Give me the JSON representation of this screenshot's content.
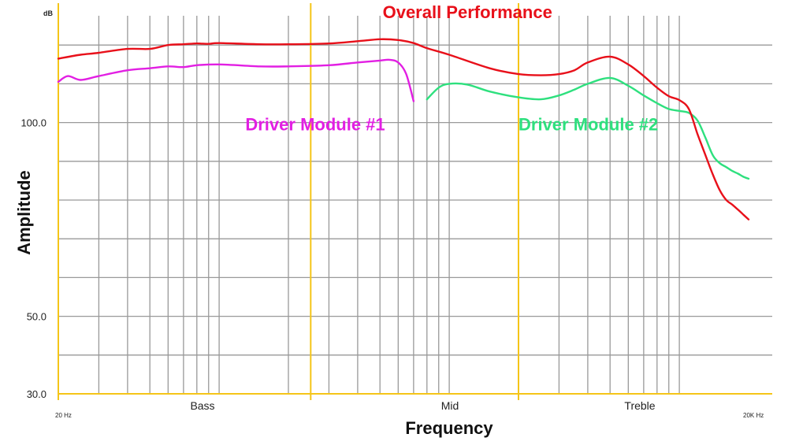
{
  "chart_data": {
    "type": "line",
    "title": "",
    "xlabel": "Frequency",
    "ylabel": "Amplitude",
    "y_unit": "dB",
    "x_unit_labels": {
      "start": "20 Hz",
      "end": "20K Hz"
    },
    "x_scale": "log",
    "xlim": [
      20,
      20000
    ],
    "ylim": [
      30,
      130
    ],
    "y_ticks": [
      {
        "value": 100,
        "label": "100.0"
      },
      {
        "value": 50,
        "label": "50.0"
      },
      {
        "value": 30,
        "label": "30.0"
      }
    ],
    "bands": [
      {
        "label": "Bass",
        "from": 20,
        "to": 250
      },
      {
        "label": "Mid",
        "from": 250,
        "to": 2000
      },
      {
        "label": "Treble",
        "from": 2000,
        "to": 20000
      }
    ],
    "band_boundaries": [
      20,
      250,
      2000
    ],
    "grid": true,
    "colors": {
      "band_lines": "#f5c518",
      "grid": "#999999"
    },
    "series": [
      {
        "name": "Overall Performance",
        "color": "#e8101a",
        "points": [
          [
            20,
            116.5
          ],
          [
            25,
            117.5
          ],
          [
            30,
            118
          ],
          [
            40,
            119
          ],
          [
            50,
            119
          ],
          [
            60,
            120
          ],
          [
            70,
            120.2
          ],
          [
            80,
            120.4
          ],
          [
            90,
            120.3
          ],
          [
            100,
            120.5
          ],
          [
            150,
            120.2
          ],
          [
            200,
            120.2
          ],
          [
            300,
            120.4
          ],
          [
            400,
            121
          ],
          [
            500,
            121.5
          ],
          [
            600,
            121.3
          ],
          [
            700,
            120.5
          ],
          [
            800,
            119.2
          ],
          [
            1000,
            117.5
          ],
          [
            1500,
            114
          ],
          [
            2000,
            112.5
          ],
          [
            2500,
            112.2
          ],
          [
            3000,
            112.5
          ],
          [
            3500,
            113.5
          ],
          [
            4000,
            115.5
          ],
          [
            5000,
            117
          ],
          [
            6000,
            115
          ],
          [
            7000,
            112
          ],
          [
            8000,
            109
          ],
          [
            9000,
            106.8
          ],
          [
            10000,
            105.8
          ],
          [
            11000,
            103.5
          ],
          [
            12000,
            97
          ],
          [
            13000,
            91.5
          ],
          [
            14000,
            86.5
          ],
          [
            15000,
            82.5
          ],
          [
            16000,
            80
          ],
          [
            17000,
            78.8
          ],
          [
            18000,
            77.5
          ],
          [
            19000,
            76.2
          ],
          [
            20000,
            75
          ]
        ]
      },
      {
        "name": "Driver Module #1",
        "color": "#e21fe3",
        "points": [
          [
            20,
            110.5
          ],
          [
            22,
            112
          ],
          [
            25,
            111
          ],
          [
            30,
            112
          ],
          [
            40,
            113.5
          ],
          [
            50,
            114
          ],
          [
            60,
            114.5
          ],
          [
            70,
            114.3
          ],
          [
            80,
            114.8
          ],
          [
            100,
            115
          ],
          [
            150,
            114.5
          ],
          [
            200,
            114.5
          ],
          [
            300,
            114.8
          ],
          [
            400,
            115.5
          ],
          [
            500,
            116
          ],
          [
            550,
            116.2
          ],
          [
            600,
            115.5
          ],
          [
            650,
            112.5
          ],
          [
            700,
            105.5
          ]
        ]
      },
      {
        "name": "Driver Module #2",
        "color": "#2ee07e",
        "points": [
          [
            800,
            106
          ],
          [
            900,
            109
          ],
          [
            1000,
            110
          ],
          [
            1200,
            109.8
          ],
          [
            1500,
            108
          ],
          [
            2000,
            106.5
          ],
          [
            2500,
            106
          ],
          [
            3000,
            107
          ],
          [
            3500,
            108.5
          ],
          [
            4000,
            110
          ],
          [
            5000,
            111.5
          ],
          [
            6000,
            109.5
          ],
          [
            7000,
            107
          ],
          [
            8000,
            105
          ],
          [
            9000,
            103.5
          ],
          [
            10000,
            103
          ],
          [
            11000,
            102.5
          ],
          [
            12000,
            100.5
          ],
          [
            13000,
            96
          ],
          [
            14000,
            91.5
          ],
          [
            15000,
            89.5
          ],
          [
            16000,
            88.5
          ],
          [
            17000,
            87.5
          ],
          [
            18000,
            86.8
          ],
          [
            19000,
            86
          ],
          [
            20000,
            85.5
          ]
        ]
      }
    ],
    "annotations": [
      {
        "text": "Overall Performance",
        "series": 0,
        "x": 1200,
        "y": 127
      },
      {
        "text": "Driver Module #1",
        "series": 1,
        "x": 130,
        "y": 98
      },
      {
        "text": "Driver Module #2",
        "series": 2,
        "x": 2000,
        "y": 98
      }
    ]
  }
}
